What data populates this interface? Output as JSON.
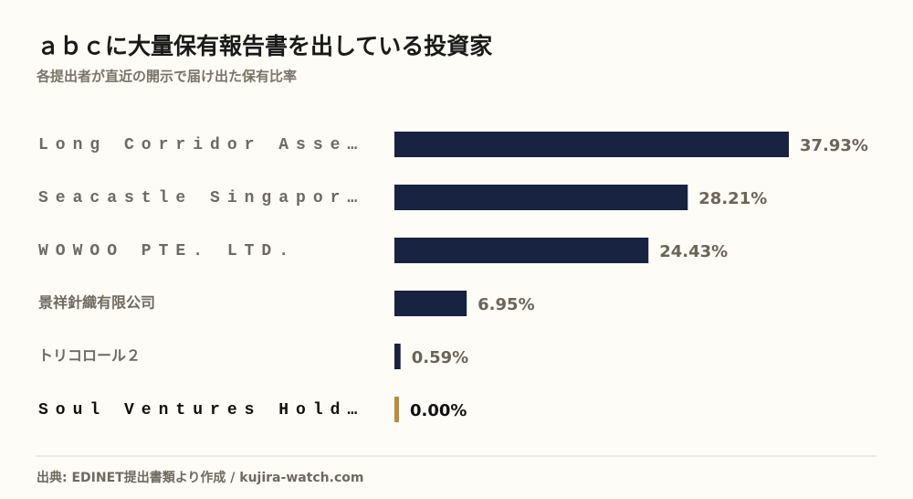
{
  "chart_data": {
    "type": "bar",
    "orientation": "horizontal",
    "title": "ａｂｃに大量保有報告書を出している投資家",
    "subtitle": "各提出者が直近の開示で届け出た保有比率",
    "categories": [
      "Long Corridor Asse…",
      "Seacastle Singapor…",
      "WOWOO PTE. LTD.",
      "景祥針織有限公司",
      "トリコロール２",
      "Soul Ventures Hold…"
    ],
    "values": [
      37.93,
      28.21,
      24.43,
      6.95,
      0.59,
      0.0
    ],
    "value_labels": [
      "37.93%",
      "28.21%",
      "24.43%",
      "6.95%",
      "0.59%",
      "0.00%"
    ],
    "colors": [
      "#172340",
      "#172340",
      "#172340",
      "#172340",
      "#172340",
      "#c08a3e"
    ],
    "footer": "出典: EDINET提出書類より作成 / kujira-watch.com"
  }
}
